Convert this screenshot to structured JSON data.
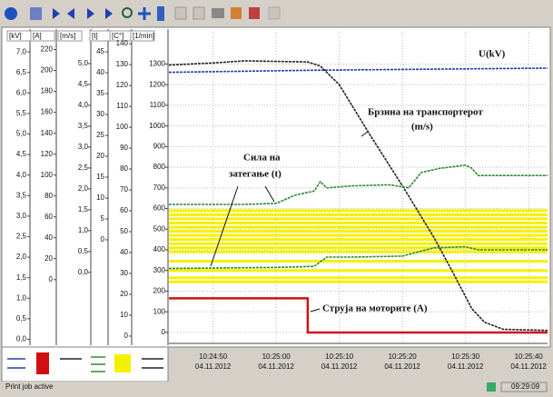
{
  "chart_data": {
    "type": "line",
    "xlim": [
      "10:24:43",
      "10:25:43"
    ],
    "xticks": [
      "10:24:50",
      "10:25:00",
      "10:25:10",
      "10:25:20",
      "10:25:30",
      "10:25:40"
    ],
    "xtick_dates": [
      "04.11.2012",
      "04.11.2012",
      "04.11.2012",
      "04.11.2012",
      "04.11.2012",
      "04.11.2012"
    ],
    "grid": true,
    "axes": [
      {
        "unit": "[kV]",
        "ylim": [
          -0.1,
          7.49
        ],
        "yticks": [
          {
            "value": 0,
            "label": "0,0"
          },
          {
            "value": 0.5,
            "label": "0,5"
          },
          {
            "value": 1,
            "label": "1,0"
          },
          {
            "value": 1.5,
            "label": "1,5"
          },
          {
            "value": 2,
            "label": "2,0"
          },
          {
            "value": 2.5,
            "label": "2,5"
          },
          {
            "value": 3,
            "label": "3,0"
          },
          {
            "value": 3.5,
            "label": "3,5"
          },
          {
            "value": 4,
            "label": "4,0"
          },
          {
            "value": 4.5,
            "label": "4,5"
          },
          {
            "value": 5,
            "label": "5,0"
          },
          {
            "value": 5.5,
            "label": "5,5"
          },
          {
            "value": 6,
            "label": "6,0"
          },
          {
            "value": 6.5,
            "label": "6,5"
          },
          {
            "value": 7,
            "label": "7,0"
          }
        ]
      },
      {
        "unit": "[A]",
        "ylim": [
          -61,
          237
        ],
        "yticks": [
          0,
          20,
          40,
          60,
          80,
          100,
          120,
          140,
          160,
          180,
          200,
          220
        ]
      },
      {
        "unit": "[m/s]",
        "ylim": [
          -1.7,
          5.76
        ],
        "yticks": [
          {
            "value": 0,
            "label": "0,0"
          },
          {
            "value": 0.5,
            "label": "0,5"
          },
          {
            "value": 1,
            "label": "1,0"
          },
          {
            "value": 1.5,
            "label": "1,5"
          },
          {
            "value": 2,
            "label": "2,0"
          },
          {
            "value": 2.5,
            "label": "2,5"
          },
          {
            "value": 3,
            "label": "3,0"
          },
          {
            "value": 3.5,
            "label": "3,5"
          },
          {
            "value": 4,
            "label": "4,0"
          },
          {
            "value": 4.5,
            "label": "4,5"
          },
          {
            "value": 5,
            "label": "5,0"
          }
        ]
      },
      {
        "unit": "[t]",
        "ylim": [
          -24.8,
          49.8
        ],
        "yticks": [
          0,
          5,
          10,
          15,
          20,
          25,
          30,
          35,
          40,
          45
        ]
      },
      {
        "unit": "[C°]",
        "ylim": [
          -3.5,
          145.7
        ],
        "yticks": [
          0,
          10,
          20,
          30,
          40,
          50,
          60,
          70,
          80,
          90,
          100,
          110,
          120,
          130,
          140
        ]
      },
      {
        "unit": "[1/min]",
        "ylim": [
          -53,
          1456
        ],
        "yticks": [
          0,
          100,
          200,
          300,
          400,
          500,
          600,
          700,
          800,
          900,
          1000,
          1100,
          1200,
          1300,
          1400
        ]
      }
    ],
    "limit_lines": {
      "color": "#f5f000",
      "values": [
        590,
        570,
        550,
        530,
        510,
        490,
        470,
        450,
        430,
        410,
        390,
        345,
        300,
        265,
        245
      ]
    },
    "series": [
      {
        "color": "#1f3fb0",
        "x": [
          "10:24:43",
          "10:24:55",
          "10:25:06",
          "10:25:43"
        ],
        "values": [
          1260,
          1265,
          1270,
          1280
        ]
      },
      {
        "color": "#222222",
        "x": [
          "10:24:43",
          "10:24:50",
          "10:24:55",
          "10:25:05",
          "10:25:07",
          "10:25:10",
          "10:25:15",
          "10:25:20",
          "10:25:25",
          "10:25:28",
          "10:25:31",
          "10:25:33",
          "10:25:36",
          "10:25:43"
        ],
        "values": [
          1295,
          1305,
          1315,
          1310,
          1290,
          1200,
          950,
          710,
          460,
          290,
          115,
          50,
          15,
          10
        ]
      },
      {
        "color": "#2e8b2e",
        "x": [
          "10:24:43",
          "10:24:55",
          "10:25:00",
          "10:25:03",
          "10:25:06",
          "10:25:07",
          "10:25:08",
          "10:25:12",
          "10:25:18",
          "10:25:21",
          "10:25:23",
          "10:25:26",
          "10:25:30",
          "10:25:31",
          "10:25:32",
          "10:25:43"
        ],
        "values": [
          620,
          620,
          625,
          665,
          685,
          730,
          700,
          710,
          715,
          700,
          775,
          795,
          810,
          795,
          760,
          760
        ]
      },
      {
        "color": "#2e8b2e",
        "x": [
          "10:24:43",
          "10:25:00",
          "10:25:06",
          "10:25:08",
          "10:25:12",
          "10:25:20",
          "10:25:25",
          "10:25:30",
          "10:25:32",
          "10:25:43"
        ],
        "values": [
          310,
          315,
          320,
          365,
          365,
          370,
          410,
          415,
          400,
          400
        ]
      },
      {
        "color": "#d01010",
        "x": [
          "10:24:43",
          "10:25:05",
          "10:25:05",
          "10:25:43"
        ],
        "values": [
          165,
          165,
          0,
          0
        ]
      }
    ],
    "annotations": [
      "U(kV)",
      "Брзина на транспортерот",
      "(m/s)",
      "Сила на",
      "затегање (t)",
      "Струја на моторите (A)"
    ]
  },
  "status_bar": {
    "message": "Print job active",
    "time": "09:29:09"
  }
}
